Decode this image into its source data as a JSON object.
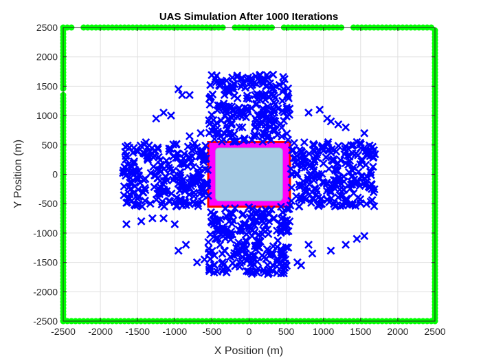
{
  "chart_data": {
    "type": "scatter",
    "title": "UAS Simulation After 1000 Iterations",
    "xlabel": "X Position (m)",
    "ylabel": "Y Position (m)",
    "xlim": [
      -2500,
      2500
    ],
    "ylim": [
      -2500,
      2500
    ],
    "xticks": [
      -2500,
      -2000,
      -1500,
      -1000,
      -500,
      0,
      500,
      1000,
      1500,
      2000,
      2500
    ],
    "yticks": [
      -2500,
      -2000,
      -1500,
      -1000,
      -500,
      0,
      500,
      1000,
      1500,
      2000,
      2500
    ],
    "xtick_labels": [
      "-2500",
      "-2000",
      "-1500",
      "-1000",
      "-500",
      "0",
      "500",
      "1000",
      "1500",
      "2000",
      "2500"
    ],
    "ytick_labels": [
      "-2500",
      "-2000",
      "-1500",
      "-1000",
      "-500",
      "0",
      "500",
      "1000",
      "1500",
      "2000",
      "2500"
    ],
    "grid": true,
    "colors": {
      "uas_marker": "#0000ff",
      "boundary": "#00ff00",
      "protected_zone_fill": "#a6cbe3",
      "protected_zone_edge_outer": "#ff0000",
      "protected_zone_edge_inner": "#ff00ff"
    },
    "protected_zone": {
      "x": [
        -550,
        550
      ],
      "y": [
        -550,
        550
      ],
      "inner_x": [
        -450,
        450
      ],
      "inner_y": [
        -450,
        450
      ]
    },
    "boundary_extent": 2500,
    "uas_clusters": [
      {
        "region": "north",
        "x_range": [
          -550,
          550
        ],
        "y_range": [
          550,
          1700
        ]
      },
      {
        "region": "south",
        "x_range": [
          -550,
          550
        ],
        "y_range": [
          -1700,
          -550
        ]
      },
      {
        "region": "west",
        "x_range": [
          -1700,
          -550
        ],
        "y_range": [
          -550,
          550
        ]
      },
      {
        "region": "east",
        "x_range": [
          550,
          1700
        ],
        "y_range": [
          -550,
          550
        ]
      }
    ],
    "uas_outliers": [
      [
        -950,
        1450
      ],
      [
        -1150,
        1050
      ],
      [
        -1250,
        950
      ],
      [
        -800,
        1350
      ],
      [
        -900,
        1350
      ],
      [
        -650,
        700
      ],
      [
        -800,
        650
      ],
      [
        -1050,
        1000
      ],
      [
        800,
        1050
      ],
      [
        950,
        1100
      ],
      [
        1100,
        900
      ],
      [
        1300,
        800
      ],
      [
        1450,
        550
      ],
      [
        1550,
        700
      ],
      [
        -1650,
        -850
      ],
      [
        -1450,
        -800
      ],
      [
        -1300,
        -750
      ],
      [
        -1150,
        -750
      ],
      [
        -1000,
        -850
      ],
      [
        -950,
        -1300
      ],
      [
        -850,
        -1200
      ],
      [
        800,
        -1200
      ],
      [
        850,
        -1350
      ],
      [
        1100,
        -1300
      ],
      [
        1300,
        -1200
      ],
      [
        1450,
        -1100
      ],
      [
        1550,
        -1050
      ],
      [
        -700,
        -1500
      ],
      [
        -600,
        -1450
      ],
      [
        650,
        -1500
      ],
      [
        700,
        -1550
      ],
      [
        -1400,
        350
      ],
      [
        -1550,
        450
      ],
      [
        1350,
        300
      ],
      [
        1550,
        450
      ],
      [
        1200,
        850
      ],
      [
        1050,
        950
      ],
      [
        -1400,
        -450
      ],
      [
        1650,
        -250
      ]
    ]
  }
}
